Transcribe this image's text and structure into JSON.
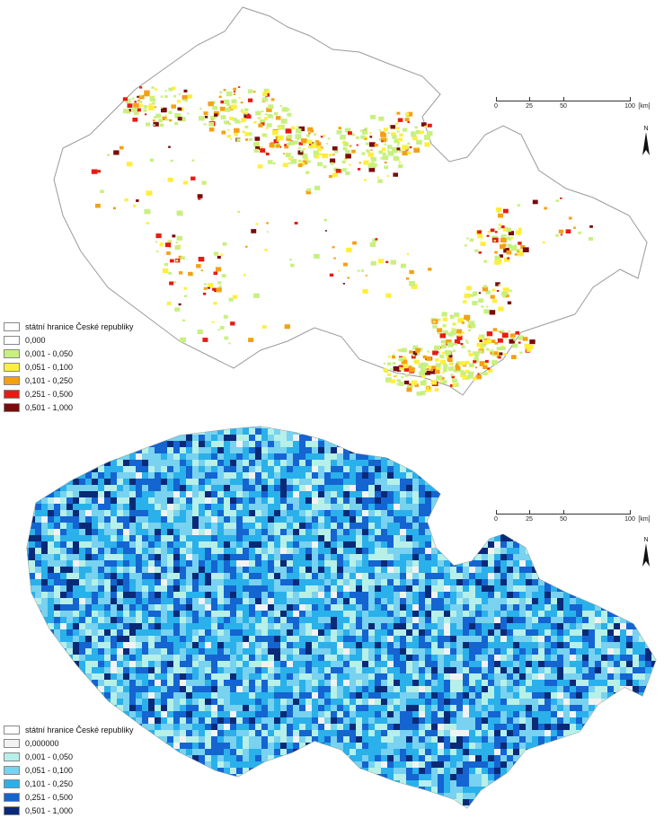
{
  "maps": [
    {
      "scalebar": {
        "ticks": [
          "0",
          "25",
          "50",
          "100"
        ],
        "unit": "[km]"
      },
      "north": "N",
      "colors": {
        "outline": "#9a9a9a",
        "fill": "#ffffff"
      },
      "legend": [
        {
          "label": "státní hranice České republiky",
          "color": "#ffffff"
        },
        {
          "label": "0,000",
          "color": "#ffffff"
        },
        {
          "label": "0,001 - 0,050",
          "color": "#c8f080"
        },
        {
          "label": "0,051 - 0,100",
          "color": "#ffef3c"
        },
        {
          "label": "0,101 - 0,250",
          "color": "#f5a014"
        },
        {
          "label": "0,251 - 0,500",
          "color": "#e51c14"
        },
        {
          "label": "0,501 - 1,000",
          "color": "#7a0c0c"
        }
      ]
    },
    {
      "scalebar": {
        "ticks": [
          "0",
          "25",
          "50",
          "100"
        ],
        "unit": "[km]"
      },
      "north": "N",
      "colors": {
        "outline": "#9a9a9a",
        "fill": "#cfeef4"
      },
      "legend": [
        {
          "label": "státní hranice České republiky",
          "color": "#ffffff"
        },
        {
          "label": "0,000000",
          "color": "#f2f2f2"
        },
        {
          "label": "0,001 - 0,050",
          "color": "#b6f0e8"
        },
        {
          "label": "0,051 - 0,100",
          "color": "#78d2f0"
        },
        {
          "label": "0,101 - 0,250",
          "color": "#2ab0ea"
        },
        {
          "label": "0,251 - 0,500",
          "color": "#1464d2"
        },
        {
          "label": "0,501 - 1,000",
          "color": "#0a2a78"
        }
      ]
    }
  ]
}
